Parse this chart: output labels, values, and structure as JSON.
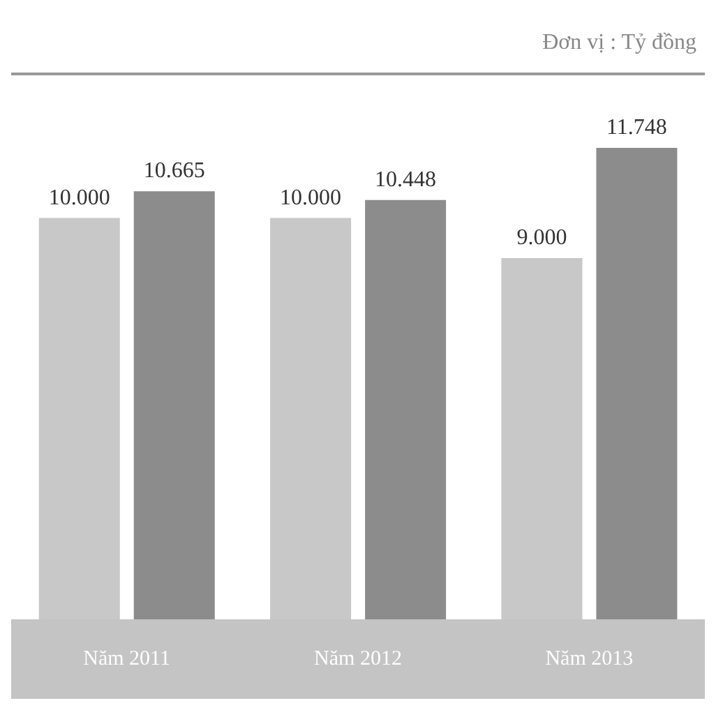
{
  "chart_data": {
    "type": "bar",
    "subtitle": "Đơn vị : Tỷ đồng",
    "categories": [
      "Năm 2011",
      "Năm 2012",
      "Năm 2013"
    ],
    "series": [
      {
        "color": "#c8c8c8",
        "values": [
          10000,
          10000,
          9000
        ],
        "value_labels": [
          "10.000",
          "10.000",
          "9.000"
        ]
      },
      {
        "color": "#8c8c8c",
        "values": [
          10665,
          10448,
          11748
        ],
        "value_labels": [
          "10.665",
          "10.448",
          "11.748"
        ]
      }
    ],
    "grid": false,
    "legend": false
  }
}
